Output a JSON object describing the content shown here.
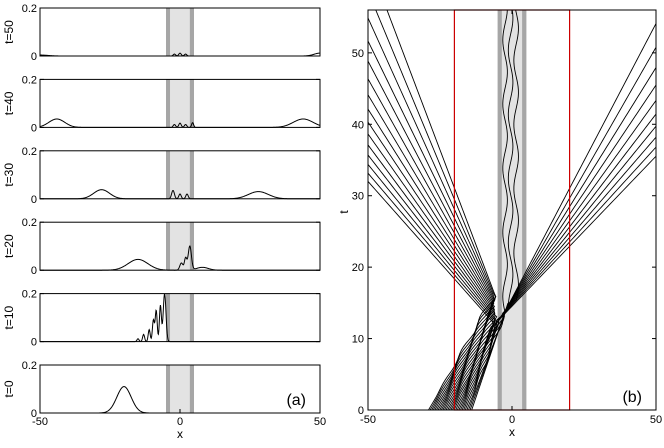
{
  "chart_data": [
    {
      "type": "line",
      "panel_label": "(a)",
      "xlabel": "x",
      "xlim": [
        -50,
        50
      ],
      "x_ticks": [
        -50,
        0,
        50
      ],
      "ylim": [
        0,
        0.2
      ],
      "y_ticks": [
        0,
        0.2
      ],
      "shaded_regions": [
        {
          "x": [
            -5,
            -3.5
          ],
          "color": "#a6a6a6"
        },
        {
          "x": [
            -3.5,
            3.5
          ],
          "color": "#e3e3e3"
        },
        {
          "x": [
            3.5,
            5
          ],
          "color": "#a6a6a6"
        }
      ],
      "subplots": [
        {
          "label": "t=50",
          "peaks": [
            {
              "x": -50,
              "h": 0.004,
              "w": 4
            },
            {
              "x": -2,
              "h": 0.008,
              "w": 0.6
            },
            {
              "x": 0,
              "h": 0.012,
              "w": 0.6
            },
            {
              "x": 2,
              "h": 0.008,
              "w": 0.6
            },
            {
              "x": 50,
              "h": 0.012,
              "w": 3
            }
          ]
        },
        {
          "label": "t=40",
          "peaks": [
            {
              "x": -44,
              "h": 0.035,
              "w": 4
            },
            {
              "x": -2,
              "h": 0.012,
              "w": 0.6
            },
            {
              "x": 0,
              "h": 0.018,
              "w": 0.6
            },
            {
              "x": 2,
              "h": 0.012,
              "w": 0.6
            },
            {
              "x": 4.5,
              "h": 0.02,
              "w": 0.5
            },
            {
              "x": 44,
              "h": 0.035,
              "w": 5
            }
          ]
        },
        {
          "label": "t=30",
          "peaks": [
            {
              "x": -28,
              "h": 0.038,
              "w": 4
            },
            {
              "x": -2.5,
              "h": 0.035,
              "w": 0.7
            },
            {
              "x": 0,
              "h": 0.02,
              "w": 0.6
            },
            {
              "x": 2.5,
              "h": 0.02,
              "w": 0.6
            },
            {
              "x": 28,
              "h": 0.03,
              "w": 5
            }
          ]
        },
        {
          "label": "t=20",
          "peaks": [
            {
              "x": -15,
              "h": 0.045,
              "w": 5
            },
            {
              "x": 0.5,
              "h": 0.03,
              "w": 0.8
            },
            {
              "x": 2,
              "h": 0.05,
              "w": 0.6
            },
            {
              "x": 3.5,
              "h": 0.1,
              "w": 0.8
            },
            {
              "x": 8,
              "h": 0.012,
              "w": 3
            }
          ]
        },
        {
          "label": "t=10",
          "peaks": [
            {
              "x": -15,
              "h": 0.012,
              "w": 0.5
            },
            {
              "x": -13,
              "h": 0.03,
              "w": 0.5
            },
            {
              "x": -11,
              "h": 0.05,
              "w": 0.5
            },
            {
              "x": -9.5,
              "h": 0.09,
              "w": 0.5
            },
            {
              "x": -8.5,
              "h": 0.13,
              "w": 0.5
            },
            {
              "x": -7,
              "h": 0.15,
              "w": 0.5
            },
            {
              "x": -5.5,
              "h": 0.2,
              "w": 0.7
            }
          ]
        },
        {
          "label": "t=0",
          "peaks": [
            {
              "x": -20,
              "h": 0.11,
              "w": 3.6
            }
          ]
        }
      ]
    },
    {
      "type": "line",
      "panel_label": "(b)",
      "xlabel": "x",
      "ylabel": "t",
      "xlim": [
        -50,
        50
      ],
      "x_ticks": [
        -50,
        0,
        50
      ],
      "ylim": [
        0,
        56
      ],
      "y_ticks": [
        0,
        10,
        20,
        30,
        40,
        50
      ],
      "shaded_regions": [
        {
          "x": [
            -5,
            -3.5
          ],
          "color": "#a6a6a6"
        },
        {
          "x": [
            -3.5,
            3.5
          ],
          "color": "#e3e3e3"
        },
        {
          "x": [
            3.5,
            5
          ],
          "color": "#a6a6a6"
        }
      ],
      "box_x": [
        -20,
        20
      ],
      "box_color": "#cc0000",
      "trajectories": {
        "count": 28,
        "x0_range": [
          -29,
          -14
        ]
      }
    }
  ]
}
